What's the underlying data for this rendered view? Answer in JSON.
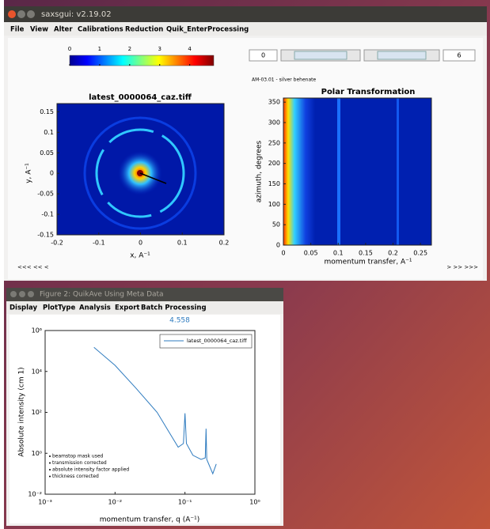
{
  "windows": [
    {
      "title": "saxsgui: v2.19.02",
      "menu": [
        "File",
        "View",
        "Alter",
        "Calibrations",
        "Reduction",
        "Quik_Enter",
        "Processing"
      ],
      "colorbar": {
        "clim": [
          0,
          4.8
        ],
        "ticks": [
          0,
          1,
          2,
          3,
          4
        ]
      },
      "inputs": [
        0,
        6
      ],
      "sample": "AM-03.01 - silver behenate",
      "image_plot": {
        "title": "latest_0000064_caz.tiff",
        "xlabel": "x, A⁻¹",
        "ylabel": "y, A⁻¹",
        "xlim": [
          -0.2,
          0.2
        ],
        "xticks": [
          -0.2,
          -0.1,
          0,
          0.1,
          0.2
        ],
        "ylim": [
          -0.15,
          0.17
        ],
        "yticks": [
          0.15,
          0.1,
          0.05,
          0,
          -0.05,
          -0.1,
          -0.15
        ]
      },
      "polar_plot": {
        "title": "Polar Transformation",
        "xlabel": "momentum transfer, A⁻¹",
        "ylabel": "azimuth, degrees",
        "xlim": [
          0,
          0.27
        ],
        "xticks": [
          0,
          0.05,
          0.1,
          0.15,
          0.2,
          0.25
        ],
        "ylim": [
          0,
          360
        ],
        "yticks": [
          0,
          50,
          100,
          150,
          200,
          250,
          300,
          350
        ]
      },
      "nav_left": "<<<   <<   <",
      "nav_right": ">   >>   >>>"
    },
    {
      "title": "Figure 2: QuikAve Using Meta Data",
      "menu": [
        "Display",
        "PlotType",
        "Analysis",
        "Export",
        "Batch Processing"
      ],
      "readout": 4.558,
      "plot": {
        "type": "line",
        "log_x": true,
        "log_y": true,
        "xlabel": "momentum transfer, q (A⁻¹)",
        "ylabel": "Absolute intensity (cm 1)",
        "xlim": [
          0.001,
          1
        ],
        "xticks": [
          {
            "value": 0.001,
            "label": "10⁻³"
          },
          {
            "value": 0.01,
            "label": "10⁻²"
          },
          {
            "value": 0.1,
            "label": "10⁻¹"
          },
          {
            "value": 1,
            "label": "10⁰"
          }
        ],
        "ylim": [
          0.01,
          1000000
        ],
        "yticks": [
          {
            "value": 0.01,
            "label": "10⁻²"
          },
          {
            "value": 1,
            "label": "10⁰"
          },
          {
            "value": 100,
            "label": "10²"
          },
          {
            "value": 10000,
            "label": "10⁴"
          },
          {
            "value": 1000000,
            "label": "10⁶"
          }
        ],
        "series": [
          {
            "name": "latest_0000064_caz.tiff",
            "color": "#2e7bbf",
            "x": [
              0.005,
              0.01,
              0.02,
              0.04,
              0.06,
              0.08,
              0.095,
              0.1,
              0.105,
              0.13,
              0.17,
              0.195,
              0.2,
              0.205,
              0.25,
              0.28
            ],
            "values": [
              150000,
              20000,
              1500,
              100,
              10,
              2,
              3,
              90,
              3,
              0.8,
              0.5,
              0.6,
              16,
              0.5,
              0.1,
              0.3
            ]
          }
        ],
        "notes": [
          "beamstop mask used",
          "transmission corrected",
          "absolute intensity factor applied",
          "thickness corrected"
        ]
      }
    }
  ]
}
